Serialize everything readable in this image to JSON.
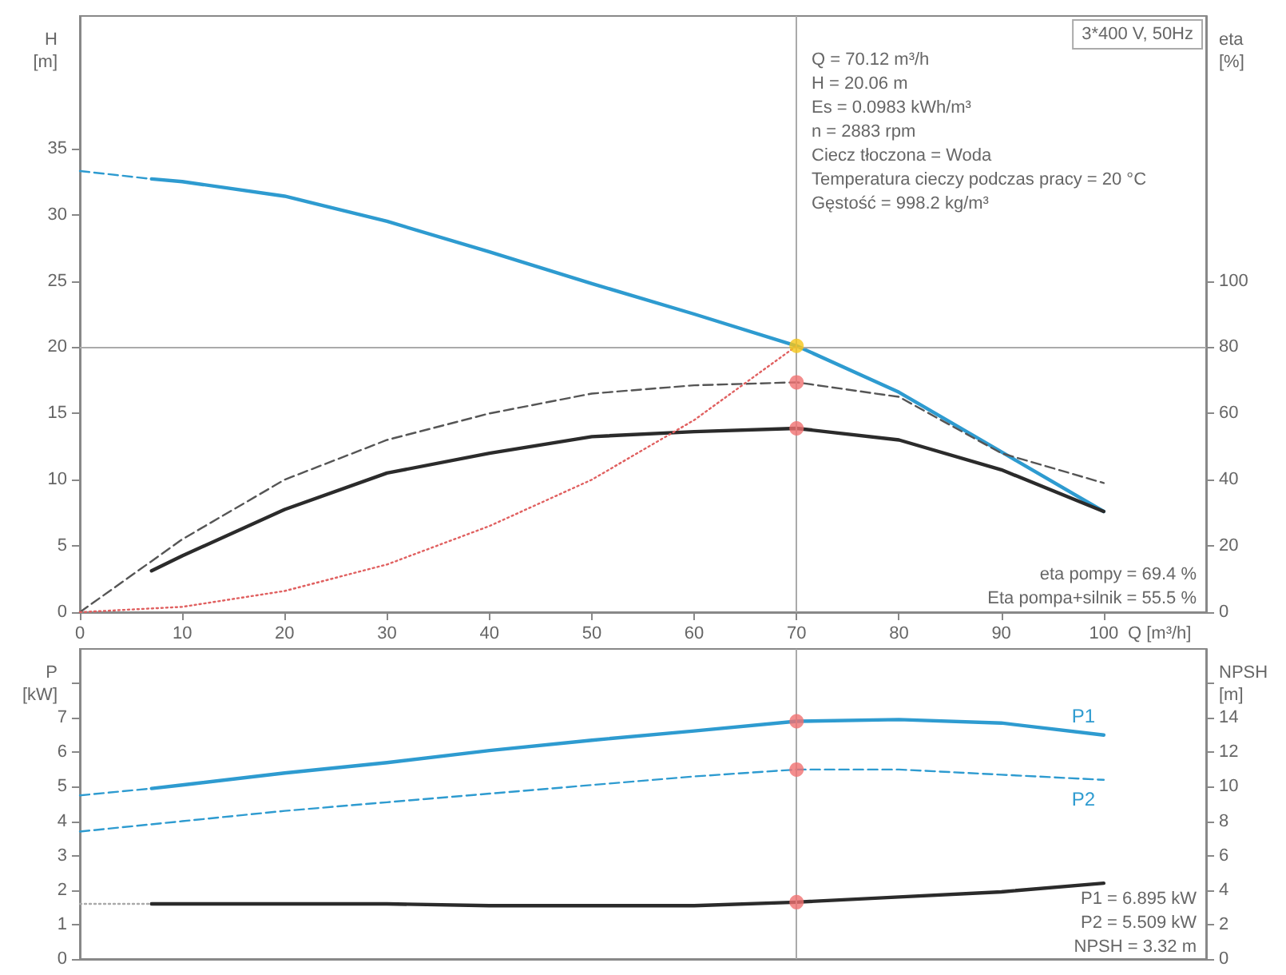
{
  "chart_data": [
    {
      "type": "line",
      "xlabel": "Q [m³/h]",
      "ylabel": "H [m]",
      "y2label": "eta [%]",
      "marker": "none",
      "xlim": [
        0,
        110
      ],
      "xticks": [
        0,
        10,
        20,
        30,
        40,
        50,
        60,
        70,
        80,
        90,
        100
      ],
      "ylim": [
        0,
        45
      ],
      "yticks": [
        0,
        5,
        10,
        15,
        20,
        25,
        30,
        35
      ],
      "y2lim": [
        0,
        180
      ],
      "y2ticks": [
        0,
        20,
        40,
        60,
        80,
        100
      ],
      "ref_lines": [
        {
          "axis": "y",
          "value": 20,
          "color": "#aaaaaa"
        },
        {
          "axis": "x",
          "value": 70,
          "color": "#aaaaaa"
        }
      ],
      "annotations": [
        "3*400 V, 50Hz",
        "Q = 70.12 m³/h",
        "H = 20.06 m",
        "Es = 0.0983 kWh/m³",
        "n = 2883 rpm",
        "Ciecz tłoczona = Woda",
        "Temperatura cieczy podczas pracy = 20 °C",
        "Gęstość = 998.2 kg/m³",
        "eta pompy = 69.4 %",
        "Eta pompa+silnik = 55.5 %"
      ],
      "series": [
        {
          "color": "#2e9bd0",
          "line_style": "dashed",
          "x": [
            0,
            7
          ],
          "values": [
            33.3,
            32.7
          ]
        },
        {
          "color": "#2e9bd0",
          "line_style": "solid",
          "x": [
            7,
            10,
            20,
            30,
            40,
            50,
            60,
            70,
            80,
            90,
            100
          ],
          "values": [
            32.7,
            32.5,
            31.4,
            29.5,
            27.2,
            24.8,
            22.5,
            20.1,
            16.6,
            12.1,
            7.6
          ]
        },
        {
          "axis": "y2",
          "color": "#555555",
          "line_style": "dashed",
          "x": [
            0,
            10,
            20,
            30,
            40,
            50,
            60,
            70,
            80,
            90,
            100
          ],
          "values": [
            0,
            22,
            40,
            52,
            60,
            66,
            68.5,
            69.4,
            65,
            48,
            39
          ]
        },
        {
          "axis": "y2",
          "color": "#2b2b2b",
          "line_style": "solid",
          "x": [
            7,
            10,
            20,
            30,
            40,
            50,
            60,
            70,
            80,
            90,
            100
          ],
          "values": [
            12.5,
            17,
            31,
            42,
            48,
            53,
            54.5,
            55.5,
            52,
            43,
            30.4
          ]
        },
        {
          "color": "#e06060",
          "line_style": "dotted",
          "x": [
            0,
            10,
            20,
            30,
            40,
            50,
            60,
            70
          ],
          "values": [
            0,
            0.4,
            1.6,
            3.6,
            6.5,
            10,
            14.5,
            20.1
          ]
        },
        {
          "type": "scatter",
          "marker": "circle",
          "color": "#f5c518",
          "x": [
            70
          ],
          "values": [
            20.1
          ]
        },
        {
          "type": "scatter",
          "marker": "circle",
          "axis": "y2",
          "color": "#f07070",
          "x": [
            70,
            70
          ],
          "values": [
            69.4,
            55.5
          ]
        }
      ]
    },
    {
      "type": "line",
      "ylabel": "P [kW]",
      "y2label": "NPSH [m]",
      "marker": "none",
      "tick_labels": "y",
      "xlim": [
        0,
        110
      ],
      "xticks": [
        0,
        10,
        20,
        30,
        40,
        50,
        60,
        70,
        80,
        90,
        100
      ],
      "ylim": [
        0,
        9
      ],
      "yticks": [
        0,
        1,
        2,
        3,
        4,
        5,
        6,
        7,
        {
          "value": 8,
          "label": null
        }
      ],
      "y2lim": [
        0,
        18
      ],
      "y2ticks": [
        0,
        2,
        4,
        6,
        8,
        10,
        12,
        14,
        {
          "value": 16,
          "label": null
        }
      ],
      "ref_lines": [
        {
          "axis": "x",
          "value": 70,
          "color": "#aaaaaa"
        }
      ],
      "annotations": [
        "P1 = 6.895 kW",
        "P2 = 5.509 kW",
        "NPSH = 3.32 m"
      ],
      "series": [
        {
          "color": "#2e9bd0",
          "line_style": "dashed",
          "x": [
            0,
            7
          ],
          "values": [
            4.75,
            4.95
          ]
        },
        {
          "name": "P1",
          "color": "#2e9bd0",
          "line_style": "solid",
          "x": [
            7,
            10,
            20,
            30,
            40,
            50,
            60,
            70,
            80,
            90,
            100
          ],
          "values": [
            4.95,
            5.05,
            5.4,
            5.7,
            6.05,
            6.35,
            6.62,
            6.9,
            6.95,
            6.85,
            6.5
          ]
        },
        {
          "name": "P2",
          "color": "#2e9bd0",
          "line_style": "dashed",
          "x": [
            0,
            10,
            20,
            30,
            40,
            50,
            60,
            70,
            80,
            90,
            100
          ],
          "values": [
            3.7,
            4.0,
            4.3,
            4.55,
            4.8,
            5.05,
            5.3,
            5.5,
            5.5,
            5.35,
            5.2
          ]
        },
        {
          "axis": "y2",
          "color": "#aaaaaa",
          "line_style": "dotted",
          "x": [
            0,
            7
          ],
          "values": [
            3.2,
            3.2
          ]
        },
        {
          "axis": "y2",
          "color": "#2b2b2b",
          "line_style": "solid",
          "x": [
            7,
            10,
            20,
            30,
            40,
            50,
            60,
            70,
            80,
            90,
            100
          ],
          "values": [
            3.2,
            3.2,
            3.2,
            3.2,
            3.1,
            3.1,
            3.1,
            3.3,
            3.6,
            3.9,
            4.4
          ]
        },
        {
          "type": "scatter",
          "marker": "circle",
          "color": "#f07070",
          "x": [
            70,
            70
          ],
          "values": [
            6.9,
            5.5
          ]
        },
        {
          "type": "scatter",
          "marker": "circle",
          "axis": "y2",
          "color": "#f07070",
          "x": [
            70
          ],
          "values": [
            3.3
          ]
        }
      ]
    }
  ]
}
